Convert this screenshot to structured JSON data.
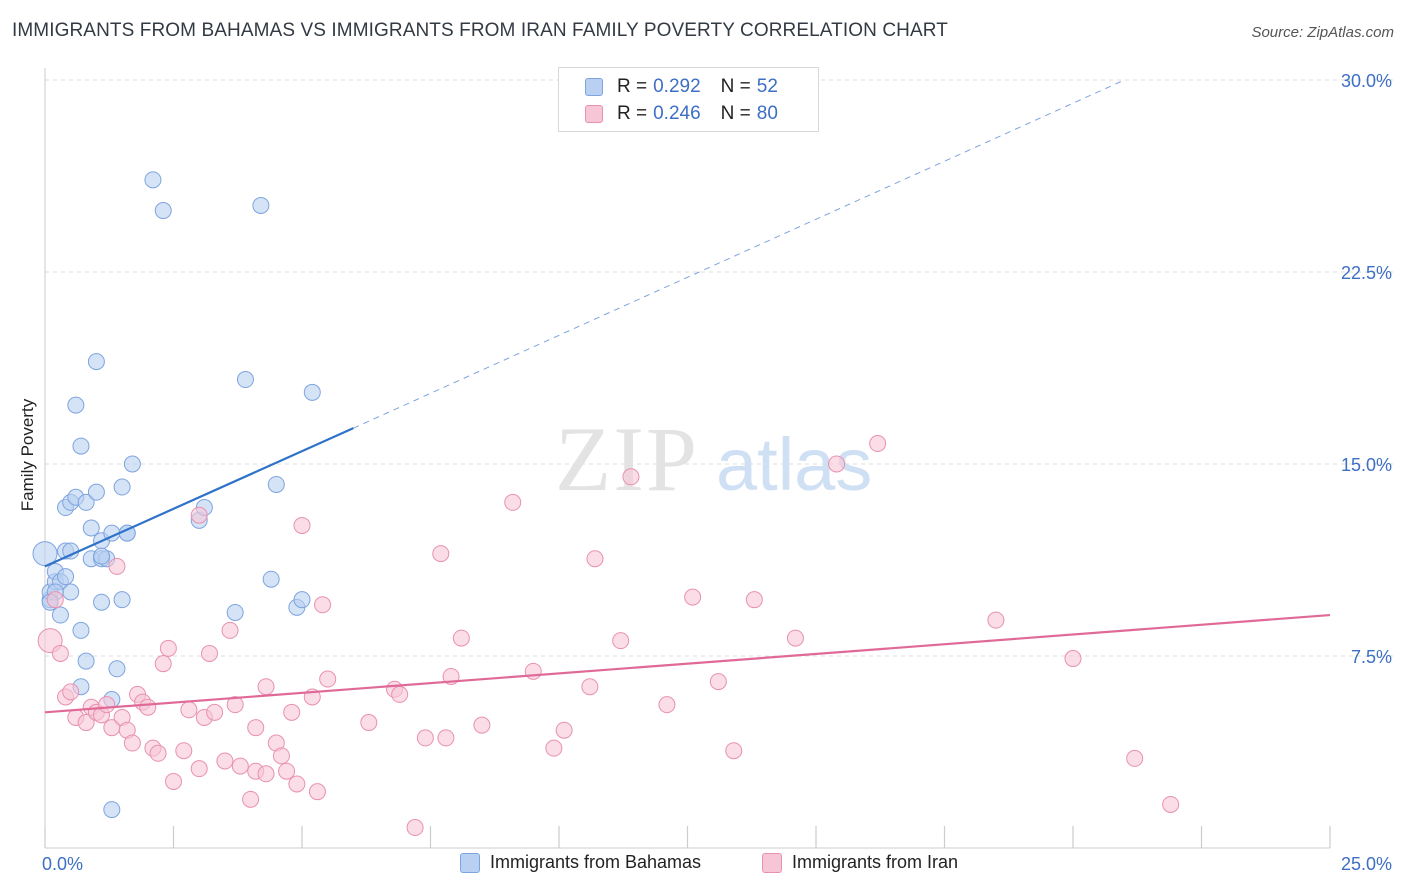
{
  "title": "IMMIGRANTS FROM BAHAMAS VS IMMIGRANTS FROM IRAN FAMILY POVERTY CORRELATION CHART",
  "source": "Source: ZipAtlas.com",
  "watermark": {
    "zip": "ZIP",
    "atlas": "atlas"
  },
  "legend": {
    "r_label": "R =",
    "n_label": "N =",
    "rows": [
      {
        "r": "0.292",
        "n": "52",
        "fill": "#b9d0f2",
        "stroke": "#7ea4de"
      },
      {
        "r": "0.246",
        "n": "80",
        "fill": "#f7c6d6",
        "stroke": "#e891b0"
      }
    ]
  },
  "chart_data": {
    "type": "scatter",
    "title": "IMMIGRANTS FROM BAHAMAS VS IMMIGRANTS FROM IRAN FAMILY POVERTY CORRELATION CHART",
    "xlabel": "",
    "ylabel": "Family Poverty",
    "xlim": [
      0,
      25
    ],
    "ylim": [
      0,
      30
    ],
    "x_tick_labels": [
      "0.0%",
      "25.0%"
    ],
    "y_ticks": [
      7.5,
      15.0,
      22.5,
      30.0
    ],
    "y_tick_labels": [
      "7.5%",
      "15.0%",
      "22.5%",
      "30.0%"
    ],
    "grid": "horizontal dashed",
    "legend_position": "top-center",
    "series": [
      {
        "name": "Immigrants from Bahamas",
        "color": "#7ea4de",
        "fill": "#b9d0f2",
        "line_color": "#2f72c9",
        "trend": {
          "x0": 0,
          "y0": 11.0,
          "x1": 6.0,
          "y1": 16.4,
          "dashed_to_x": 21.0,
          "dashed_to_y": 30.0
        },
        "points": [
          [
            0.0,
            11.5
          ],
          [
            0.1,
            9.7
          ],
          [
            0.1,
            10.0
          ],
          [
            0.2,
            10.4
          ],
          [
            0.2,
            10.8
          ],
          [
            0.3,
            10.4
          ],
          [
            0.3,
            9.1
          ],
          [
            0.4,
            10.6
          ],
          [
            0.4,
            13.3
          ],
          [
            0.4,
            11.6
          ],
          [
            0.5,
            10.0
          ],
          [
            0.5,
            13.5
          ],
          [
            0.5,
            11.6
          ],
          [
            0.6,
            17.3
          ],
          [
            0.6,
            13.7
          ],
          [
            0.7,
            15.7
          ],
          [
            0.7,
            8.5
          ],
          [
            0.8,
            7.3
          ],
          [
            0.8,
            13.5
          ],
          [
            0.9,
            12.5
          ],
          [
            0.9,
            11.3
          ],
          [
            1.0,
            19.0
          ],
          [
            1.0,
            13.9
          ],
          [
            1.1,
            12.0
          ],
          [
            1.1,
            11.3
          ],
          [
            1.1,
            9.6
          ],
          [
            1.2,
            11.3
          ],
          [
            1.3,
            12.3
          ],
          [
            1.3,
            5.8
          ],
          [
            1.4,
            7.0
          ],
          [
            1.5,
            14.1
          ],
          [
            1.5,
            9.7
          ],
          [
            1.6,
            12.3
          ],
          [
            1.6,
            12.3
          ],
          [
            1.7,
            15.0
          ],
          [
            0.7,
            6.3
          ],
          [
            1.3,
            1.5
          ],
          [
            2.1,
            26.1
          ],
          [
            2.3,
            24.9
          ],
          [
            3.0,
            12.8
          ],
          [
            3.1,
            13.3
          ],
          [
            3.7,
            9.2
          ],
          [
            3.9,
            18.3
          ],
          [
            4.2,
            25.1
          ],
          [
            4.4,
            10.5
          ],
          [
            4.5,
            14.2
          ],
          [
            4.9,
            9.4
          ],
          [
            5.0,
            9.7
          ],
          [
            5.2,
            17.8
          ],
          [
            1.1,
            11.4
          ],
          [
            0.2,
            10.0
          ],
          [
            0.1,
            9.6
          ]
        ]
      },
      {
        "name": "Immigrants from Iran",
        "color": "#e891b0",
        "fill": "#f7c6d6",
        "line_color": "#e06a97",
        "trend": {
          "x0": 0,
          "y0": 5.3,
          "x1": 25.0,
          "y1": 9.1
        },
        "points": [
          [
            0.1,
            8.1
          ],
          [
            0.2,
            9.7
          ],
          [
            0.3,
            7.6
          ],
          [
            0.4,
            5.9
          ],
          [
            0.5,
            6.1
          ],
          [
            0.6,
            5.1
          ],
          [
            0.8,
            4.9
          ],
          [
            0.9,
            5.5
          ],
          [
            1.0,
            5.3
          ],
          [
            1.1,
            5.2
          ],
          [
            1.2,
            5.6
          ],
          [
            1.3,
            4.7
          ],
          [
            1.4,
            11.0
          ],
          [
            1.5,
            5.1
          ],
          [
            1.6,
            4.6
          ],
          [
            1.7,
            4.1
          ],
          [
            1.8,
            6.0
          ],
          [
            1.9,
            5.7
          ],
          [
            2.0,
            5.5
          ],
          [
            2.1,
            3.9
          ],
          [
            2.2,
            3.7
          ],
          [
            2.3,
            7.2
          ],
          [
            2.4,
            7.8
          ],
          [
            2.5,
            2.6
          ],
          [
            2.7,
            3.8
          ],
          [
            2.8,
            5.4
          ],
          [
            3.0,
            13.0
          ],
          [
            3.0,
            3.1
          ],
          [
            3.1,
            5.1
          ],
          [
            3.2,
            7.6
          ],
          [
            3.3,
            5.3
          ],
          [
            3.5,
            3.4
          ],
          [
            3.6,
            8.5
          ],
          [
            3.7,
            5.6
          ],
          [
            3.8,
            3.2
          ],
          [
            4.0,
            1.9
          ],
          [
            4.1,
            4.7
          ],
          [
            4.1,
            3.0
          ],
          [
            4.3,
            6.3
          ],
          [
            4.3,
            2.9
          ],
          [
            4.5,
            4.1
          ],
          [
            4.6,
            3.6
          ],
          [
            4.7,
            3.0
          ],
          [
            4.8,
            5.3
          ],
          [
            4.9,
            2.5
          ],
          [
            5.0,
            12.6
          ],
          [
            5.2,
            5.9
          ],
          [
            5.3,
            2.2
          ],
          [
            5.4,
            9.5
          ],
          [
            5.5,
            6.6
          ],
          [
            6.3,
            4.9
          ],
          [
            6.8,
            6.2
          ],
          [
            6.9,
            6.0
          ],
          [
            7.2,
            0.8
          ],
          [
            7.4,
            4.3
          ],
          [
            7.7,
            11.5
          ],
          [
            7.8,
            4.3
          ],
          [
            7.9,
            6.7
          ],
          [
            8.1,
            8.2
          ],
          [
            8.5,
            4.8
          ],
          [
            9.1,
            13.5
          ],
          [
            9.5,
            6.9
          ],
          [
            9.9,
            3.9
          ],
          [
            10.1,
            4.6
          ],
          [
            10.6,
            6.3
          ],
          [
            10.7,
            11.3
          ],
          [
            11.2,
            8.1
          ],
          [
            11.4,
            14.5
          ],
          [
            12.1,
            5.6
          ],
          [
            12.6,
            9.8
          ],
          [
            13.1,
            6.5
          ],
          [
            13.4,
            3.8
          ],
          [
            13.8,
            9.7
          ],
          [
            14.6,
            8.2
          ],
          [
            15.4,
            15.0
          ],
          [
            16.2,
            15.8
          ],
          [
            18.5,
            8.9
          ],
          [
            20.0,
            7.4
          ],
          [
            21.2,
            3.5
          ],
          [
            21.9,
            1.7
          ]
        ]
      }
    ]
  }
}
